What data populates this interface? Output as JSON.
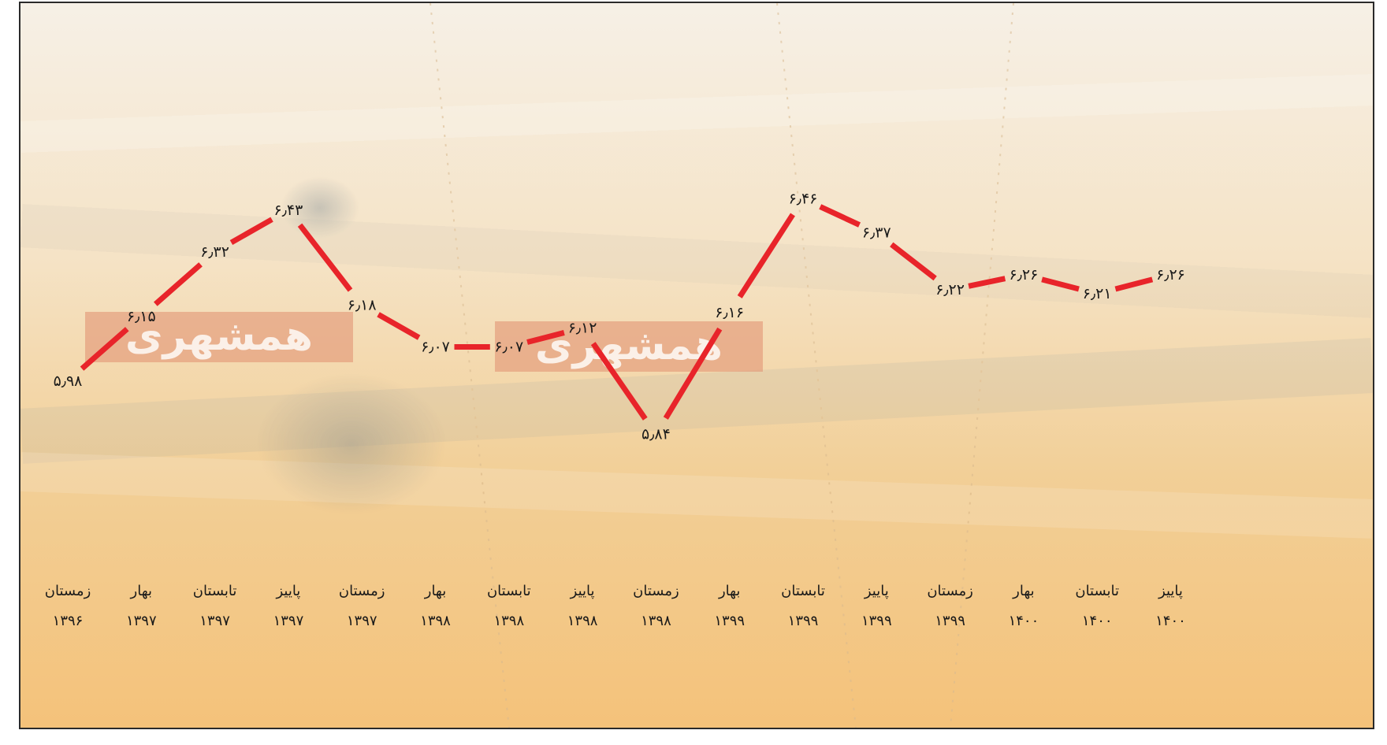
{
  "chart_data": {
    "type": "line",
    "categories": [
      {
        "season": "زمستان",
        "year": "۱۳۹۶"
      },
      {
        "season": "بهار",
        "year": "۱۳۹۷"
      },
      {
        "season": "تابستان",
        "year": "۱۳۹۷"
      },
      {
        "season": "پاییز",
        "year": "۱۳۹۷"
      },
      {
        "season": "زمستان",
        "year": "۱۳۹۷"
      },
      {
        "season": "بهار",
        "year": "۱۳۹۸"
      },
      {
        "season": "تابستان",
        "year": "۱۳۹۸"
      },
      {
        "season": "پاییز",
        "year": "۱۳۹۸"
      },
      {
        "season": "زمستان",
        "year": "۱۳۹۸"
      },
      {
        "season": "بهار",
        "year": "۱۳۹۹"
      },
      {
        "season": "تابستان",
        "year": "۱۳۹۹"
      },
      {
        "season": "پاییز",
        "year": "۱۳۹۹"
      },
      {
        "season": "زمستان",
        "year": "۱۳۹۹"
      },
      {
        "season": "بهار",
        "year": "۱۴۰۰"
      },
      {
        "season": "تابستان",
        "year": "۱۴۰۰"
      },
      {
        "season": "پاییز",
        "year": "۱۴۰۰"
      }
    ],
    "values": [
      5.98,
      6.15,
      6.32,
      6.43,
      6.18,
      6.07,
      6.07,
      6.12,
      5.84,
      6.16,
      6.46,
      6.37,
      6.22,
      6.26,
      6.21,
      6.26
    ],
    "value_labels": [
      "۵٫۹۸",
      "۶٫۱۵",
      "۶٫۳۲",
      "۶٫۴۳",
      "۶٫۱۸",
      "۶٫۰۷",
      "۶٫۰۷",
      "۶٫۱۲",
      "۵٫۸۴",
      "۶٫۱۶",
      "۶٫۴۶",
      "۶٫۳۷",
      "۶٫۲۲",
      "۶٫۲۶",
      "۶٫۲۱",
      "۶٫۲۶"
    ],
    "title": "",
    "xlabel": "",
    "ylabel": "",
    "ylim": [
      5.4,
      6.85
    ],
    "grid": false,
    "legend": "none"
  },
  "watermark": {
    "text": "همشهری"
  },
  "colors": {
    "line": "#e8242a",
    "drop": "#e8242a",
    "background_light": "#f7ecd8",
    "background_warm": "#f3c27d",
    "watermark_band": "#e39a7a",
    "text": "#1a1a1a"
  }
}
